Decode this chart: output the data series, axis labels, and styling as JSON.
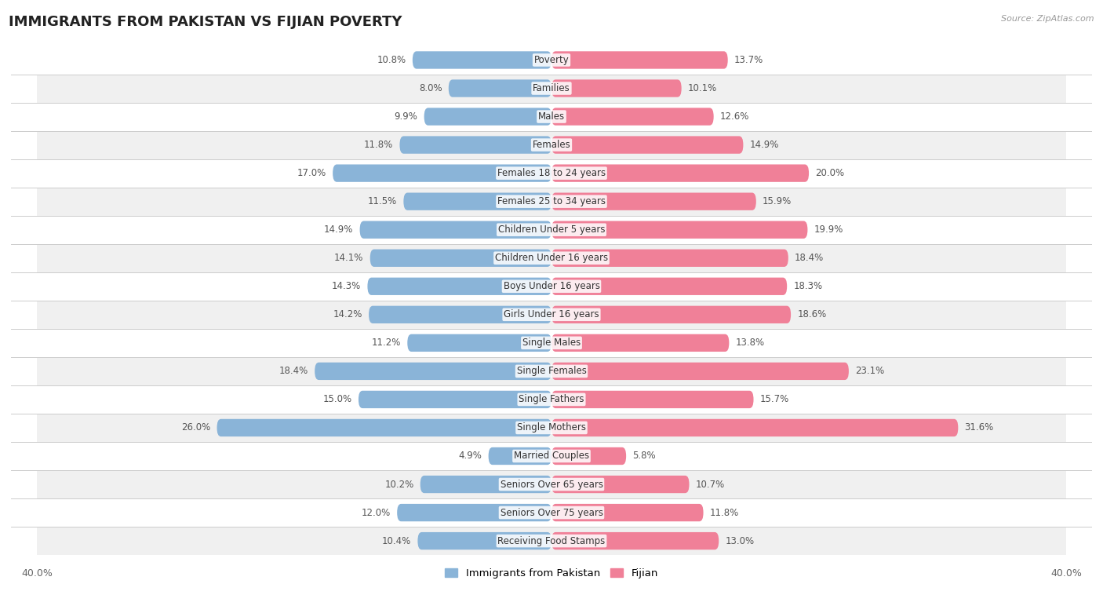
{
  "title": "IMMIGRANTS FROM PAKISTAN VS FIJIAN POVERTY",
  "source": "Source: ZipAtlas.com",
  "categories": [
    "Poverty",
    "Families",
    "Males",
    "Females",
    "Females 18 to 24 years",
    "Females 25 to 34 years",
    "Children Under 5 years",
    "Children Under 16 years",
    "Boys Under 16 years",
    "Girls Under 16 years",
    "Single Males",
    "Single Females",
    "Single Fathers",
    "Single Mothers",
    "Married Couples",
    "Seniors Over 65 years",
    "Seniors Over 75 years",
    "Receiving Food Stamps"
  ],
  "pakistan_values": [
    10.8,
    8.0,
    9.9,
    11.8,
    17.0,
    11.5,
    14.9,
    14.1,
    14.3,
    14.2,
    11.2,
    18.4,
    15.0,
    26.0,
    4.9,
    10.2,
    12.0,
    10.4
  ],
  "fijian_values": [
    13.7,
    10.1,
    12.6,
    14.9,
    20.0,
    15.9,
    19.9,
    18.4,
    18.3,
    18.6,
    13.8,
    23.1,
    15.7,
    31.6,
    5.8,
    10.7,
    11.8,
    13.0
  ],
  "pakistan_color": "#8ab4d8",
  "fijian_color": "#f08098",
  "row_color_odd": "#ffffff",
  "row_color_even": "#f0f0f0",
  "background_color": "#ffffff",
  "max_value": 40.0,
  "legend_pakistan": "Immigrants from Pakistan",
  "legend_fijian": "Fijian",
  "title_fontsize": 13,
  "label_fontsize": 8.5,
  "value_fontsize": 8.5,
  "cat_fontsize": 8.5
}
